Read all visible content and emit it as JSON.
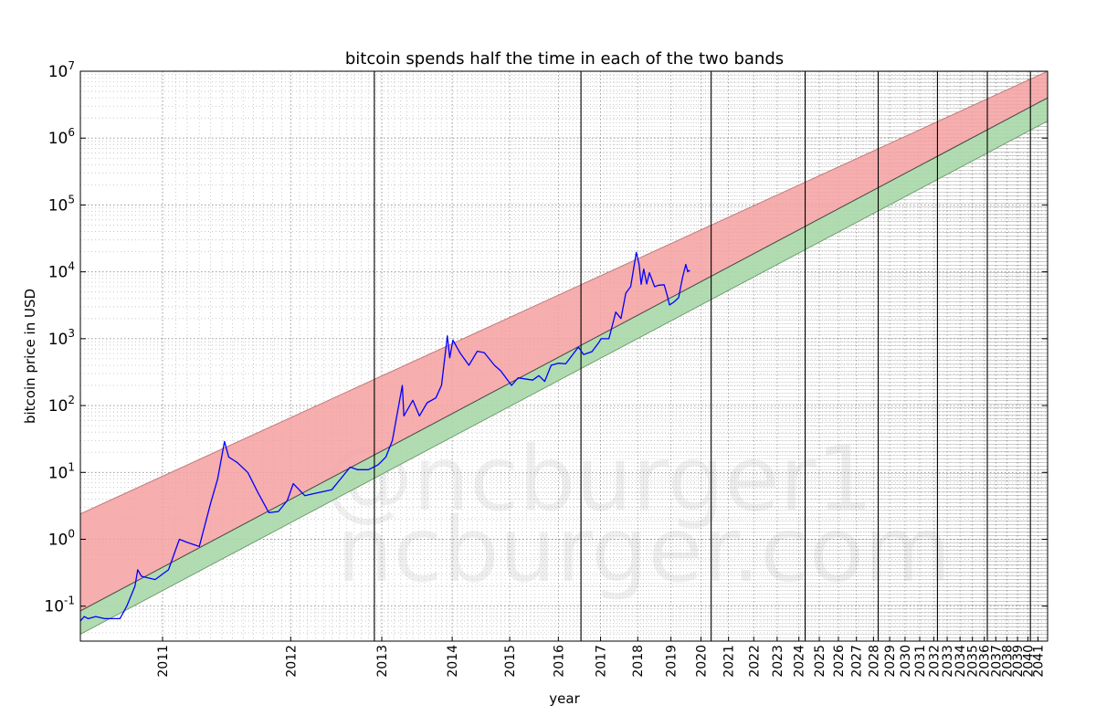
{
  "chart_data": {
    "type": "line",
    "title": "bitcoin spends half the time in each of the two bands",
    "xlabel": "year",
    "ylabel": "bitcoin price in USD",
    "y_scale": "log",
    "ylim": [
      0.03,
      10000000
    ],
    "x_scale": "log of days since the genesis block",
    "xlim": [
      "2010-07-18",
      "2041-12-31"
    ],
    "x_tick_labels": [
      "2011",
      "2012",
      "2013",
      "2014",
      "2015",
      "2016",
      "2017",
      "2018",
      "2019",
      "2020",
      "2021",
      "2022",
      "2023",
      "2024",
      "2025",
      "2026",
      "2027",
      "2028",
      "2029",
      "2030",
      "2031",
      "2032",
      "2033",
      "2034",
      "2035",
      "2036",
      "2037",
      "2038",
      "2039",
      "2040",
      "2041"
    ],
    "y_tick_labels": [
      {
        "base": "10",
        "exp": "-1",
        "value": 0.1
      },
      {
        "base": "10",
        "exp": "0",
        "value": 1
      },
      {
        "base": "10",
        "exp": "1",
        "value": 10
      },
      {
        "base": "10",
        "exp": "2",
        "value": 100
      },
      {
        "base": "10",
        "exp": "3",
        "value": 1000
      },
      {
        "base": "10",
        "exp": "4",
        "value": 10000
      },
      {
        "base": "10",
        "exp": "5",
        "value": 100000
      },
      {
        "base": "10",
        "exp": "6",
        "value": 1000000
      },
      {
        "base": "10",
        "exp": "7",
        "value": 10000000
      }
    ],
    "grid": true,
    "halving_lines": [
      "2012-11-28",
      "2016-07-09",
      "2020-05-11",
      "2024-04-20",
      "2028-04-15",
      "2032-04-10",
      "2036-04-05",
      "2040-04-01"
    ],
    "bands": {
      "upper_red": {
        "color": "#f4a0a0",
        "points": [
          [
            "2010-07-18",
            2.4
          ],
          [
            "2041-12-31",
            10000000
          ]
        ]
      },
      "middle": {
        "color": "#1a1a1a",
        "points": [
          [
            "2010-07-18",
            0.085
          ],
          [
            "2041-12-31",
            4000000
          ]
        ]
      },
      "lower_green": {
        "color": "#a8d8a8",
        "points": [
          [
            "2010-07-18",
            0.038
          ],
          [
            "2041-12-31",
            1800000
          ]
        ]
      }
    },
    "series": [
      {
        "color": "#0000ff",
        "points": [
          [
            "2010-07-18",
            0.06
          ],
          [
            "2010-07-25",
            0.07
          ],
          [
            "2010-08-01",
            0.065
          ],
          [
            "2010-08-15",
            0.07
          ],
          [
            "2010-09-01",
            0.065
          ],
          [
            "2010-10-01",
            0.065
          ],
          [
            "2010-10-15",
            0.1
          ],
          [
            "2010-11-01",
            0.2
          ],
          [
            "2010-11-07",
            0.35
          ],
          [
            "2010-11-15",
            0.28
          ],
          [
            "2010-12-15",
            0.25
          ],
          [
            "2011-01-15",
            0.35
          ],
          [
            "2011-02-10",
            1.0
          ],
          [
            "2011-03-01",
            0.9
          ],
          [
            "2011-04-01",
            0.78
          ],
          [
            "2011-05-01",
            3.5
          ],
          [
            "2011-05-20",
            8.0
          ],
          [
            "2011-06-08",
            29.0
          ],
          [
            "2011-06-20",
            17.0
          ],
          [
            "2011-07-15",
            14.0
          ],
          [
            "2011-08-15",
            10.0
          ],
          [
            "2011-09-15",
            5.0
          ],
          [
            "2011-10-20",
            2.5
          ],
          [
            "2011-11-20",
            2.6
          ],
          [
            "2011-12-20",
            3.8
          ],
          [
            "2012-01-10",
            6.8
          ],
          [
            "2012-02-20",
            4.5
          ],
          [
            "2012-04-01",
            4.9
          ],
          [
            "2012-06-01",
            5.5
          ],
          [
            "2012-08-15",
            12.0
          ],
          [
            "2012-09-15",
            11.0
          ],
          [
            "2012-11-01",
            11.0
          ],
          [
            "2012-12-15",
            13.0
          ],
          [
            "2013-01-20",
            17.0
          ],
          [
            "2013-02-20",
            30.0
          ],
          [
            "2013-04-09",
            200.0
          ],
          [
            "2013-04-17",
            70.0
          ],
          [
            "2013-06-01",
            120.0
          ],
          [
            "2013-07-05",
            70.0
          ],
          [
            "2013-08-15",
            110.0
          ],
          [
            "2013-10-01",
            130.0
          ],
          [
            "2013-11-01",
            200.0
          ],
          [
            "2013-12-04",
            1100.0
          ],
          [
            "2013-12-18",
            520.0
          ],
          [
            "2014-01-05",
            950.0
          ],
          [
            "2014-02-15",
            620.0
          ],
          [
            "2014-04-10",
            400.0
          ],
          [
            "2014-06-01",
            650.0
          ],
          [
            "2014-07-15",
            620.0
          ],
          [
            "2014-09-20",
            400.0
          ],
          [
            "2014-11-01",
            330.0
          ],
          [
            "2015-01-14",
            200.0
          ],
          [
            "2015-03-01",
            260.0
          ],
          [
            "2015-06-15",
            240.0
          ],
          [
            "2015-08-01",
            280.0
          ],
          [
            "2015-09-15",
            230.0
          ],
          [
            "2015-11-04",
            400.0
          ],
          [
            "2016-01-01",
            430.0
          ],
          [
            "2016-03-01",
            420.0
          ],
          [
            "2016-06-17",
            750.0
          ],
          [
            "2016-08-01",
            580.0
          ],
          [
            "2016-10-15",
            640.0
          ],
          [
            "2016-12-20",
            900.0
          ],
          [
            "2017-01-05",
            1000.0
          ],
          [
            "2017-03-20",
            1000.0
          ],
          [
            "2017-05-25",
            2500.0
          ],
          [
            "2017-07-15",
            2000.0
          ],
          [
            "2017-09-01",
            4800.0
          ],
          [
            "2017-10-20",
            6000.0
          ],
          [
            "2017-12-17",
            19500.0
          ],
          [
            "2018-01-15",
            13000.0
          ],
          [
            "2018-02-06",
            6500.0
          ],
          [
            "2018-03-05",
            11000.0
          ],
          [
            "2018-04-06",
            6600.0
          ],
          [
            "2018-05-05",
            9700.0
          ],
          [
            "2018-06-30",
            6000.0
          ],
          [
            "2018-08-15",
            6300.0
          ],
          [
            "2018-10-15",
            6400.0
          ],
          [
            "2018-11-20",
            4400.0
          ],
          [
            "2018-12-15",
            3200.0
          ],
          [
            "2019-02-01",
            3500.0
          ],
          [
            "2019-04-01",
            4100.0
          ],
          [
            "2019-05-15",
            8000.0
          ],
          [
            "2019-06-26",
            12900.0
          ],
          [
            "2019-07-20",
            10000.0
          ],
          [
            "2019-08-01",
            10500.0
          ],
          [
            "2019-08-15",
            10200.0
          ]
        ]
      }
    ],
    "watermark": [
      "@ncburger1",
      "ncburger.com"
    ]
  }
}
